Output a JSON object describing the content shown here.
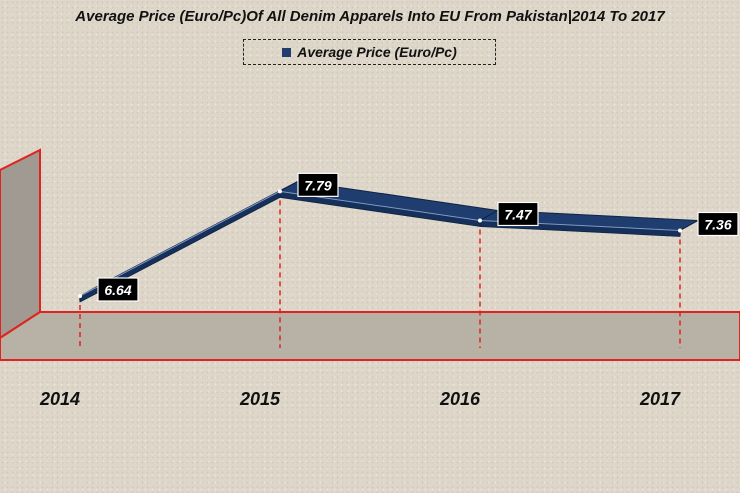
{
  "chart_data": {
    "type": "line",
    "title": "Average Price (Euro/Pc)Of All Denim Apparels Into EU From Pakistan|2014 To 2017",
    "categories": [
      "2014",
      "2015",
      "2016",
      "2017"
    ],
    "series": [
      {
        "name": "Average Price (Euro/Pc)",
        "values": [
          6.64,
          7.79,
          7.47,
          7.36
        ]
      }
    ],
    "data_labels": [
      "6.64",
      "7.79",
      "7.47",
      "7.36"
    ],
    "xlabel": "",
    "ylabel": "",
    "legend_position": "top-center",
    "grid": false,
    "colors": {
      "series": "#1f3d6e",
      "wall": "#e0231e",
      "floor": "#b5aea3",
      "label_bg": "#000000"
    }
  }
}
